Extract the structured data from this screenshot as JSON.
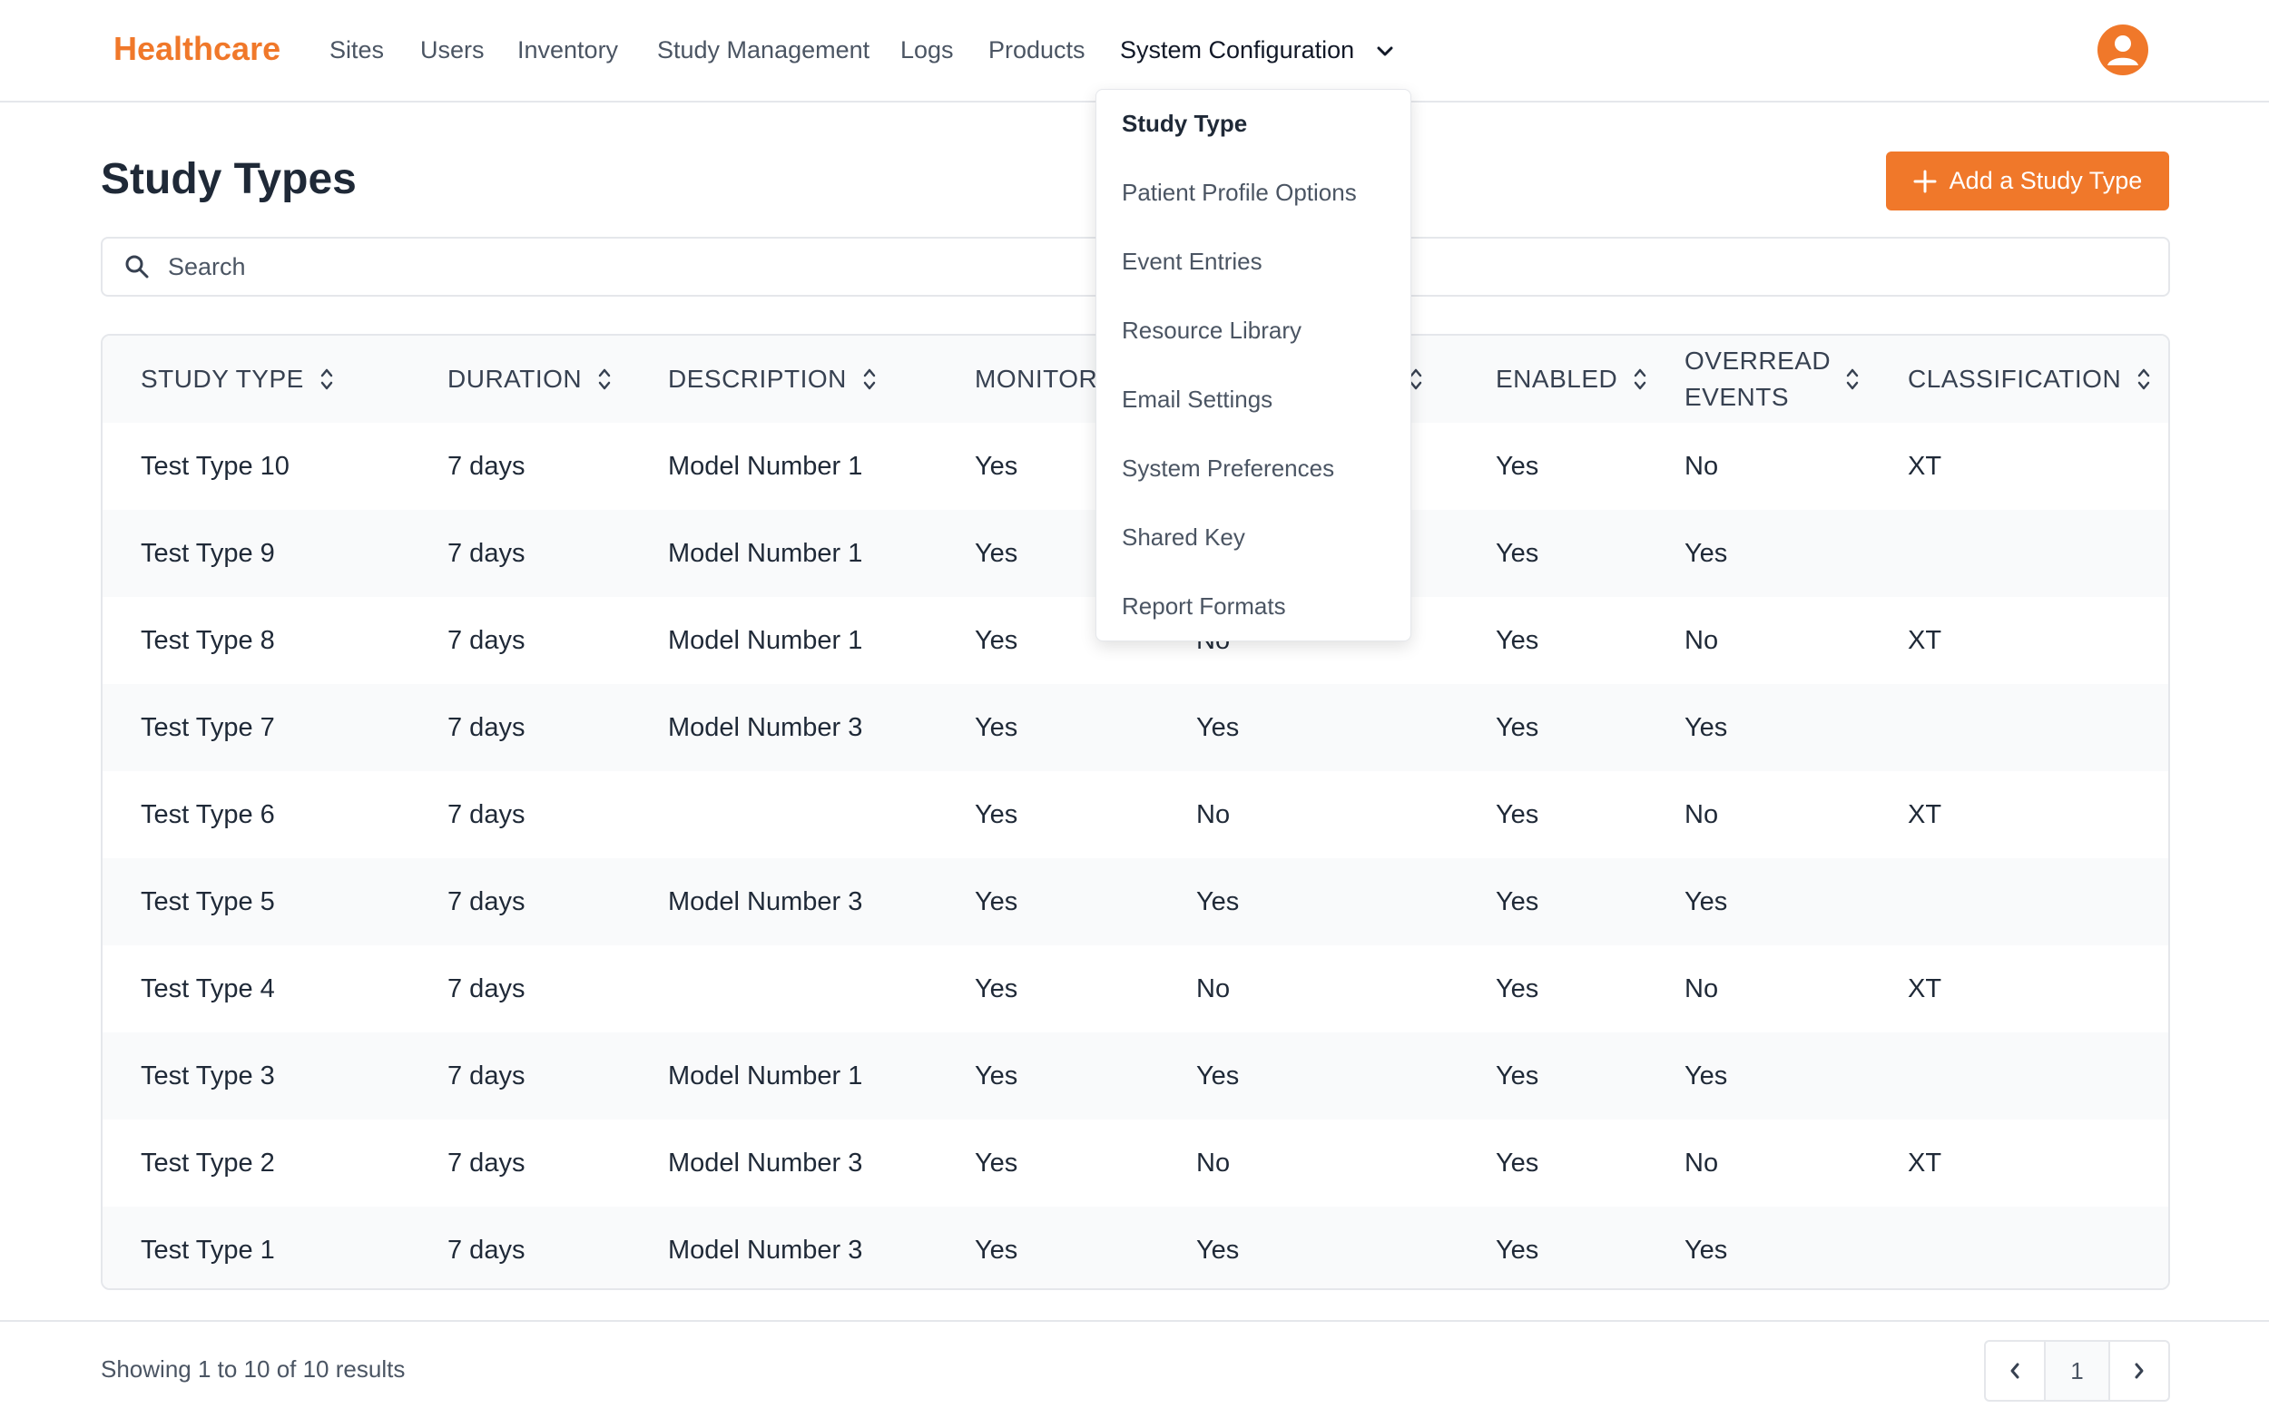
{
  "brand": "Healthcare",
  "nav": {
    "items": [
      "Sites",
      "Users",
      "Inventory",
      "Study Management",
      "Logs",
      "Products"
    ],
    "active": "System Configuration"
  },
  "page": {
    "title": "Study Types",
    "add_button": "Add a Study Type"
  },
  "search": {
    "placeholder": "Search"
  },
  "table": {
    "headers": [
      "STUDY TYPE",
      "DURATION",
      "DESCRIPTION",
      "MONITOR",
      "",
      "ENABLED",
      "OVERREAD EVENTS",
      "CLASSIFICATION"
    ],
    "rows": [
      [
        "Test Type 10",
        "7 days",
        "Model Number 1",
        "Yes",
        "",
        "Yes",
        "No",
        "XT"
      ],
      [
        "Test Type 9",
        "7 days",
        "Model Number 1",
        "Yes",
        "",
        "Yes",
        "Yes",
        ""
      ],
      [
        "Test Type 8",
        "7 days",
        "Model Number 1",
        "Yes",
        "No",
        "Yes",
        "No",
        "XT"
      ],
      [
        "Test Type 7",
        "7 days",
        "Model Number 3",
        "Yes",
        "Yes",
        "Yes",
        "Yes",
        ""
      ],
      [
        "Test Type 6",
        "7 days",
        "",
        "Yes",
        "No",
        "Yes",
        "No",
        "XT"
      ],
      [
        "Test Type 5",
        "7 days",
        "Model Number 3",
        "Yes",
        "Yes",
        "Yes",
        "Yes",
        ""
      ],
      [
        "Test Type 4",
        "7 days",
        "",
        "Yes",
        "No",
        "Yes",
        "No",
        "XT"
      ],
      [
        "Test Type 3",
        "7 days",
        "Model Number 1",
        "Yes",
        "Yes",
        "Yes",
        "Yes",
        ""
      ],
      [
        "Test Type 2",
        "7 days",
        "Model Number 3",
        "Yes",
        "No",
        "Yes",
        "No",
        "XT"
      ],
      [
        "Test Type 1",
        "7 days",
        "Model Number 3",
        "Yes",
        "Yes",
        "Yes",
        "Yes",
        ""
      ]
    ]
  },
  "dropdown": {
    "items": [
      "Study Type",
      "Patient Profile Options",
      "Event Entries",
      "Resource Library",
      "Email Settings",
      "System Preferences",
      "Shared Key",
      "Report Formats"
    ]
  },
  "footer": {
    "showing": "Showing 1 to 10 of 10 results",
    "current_page": "1"
  },
  "colors": {
    "accent": "#f0782a",
    "row_alt": "#f9fafb",
    "border": "#e5e7eb"
  },
  "icons": [
    "user-avatar-icon",
    "chevron-down-icon",
    "plus-icon",
    "search-icon",
    "sort-icon",
    "chevron-left-icon",
    "chevron-right-icon"
  ]
}
